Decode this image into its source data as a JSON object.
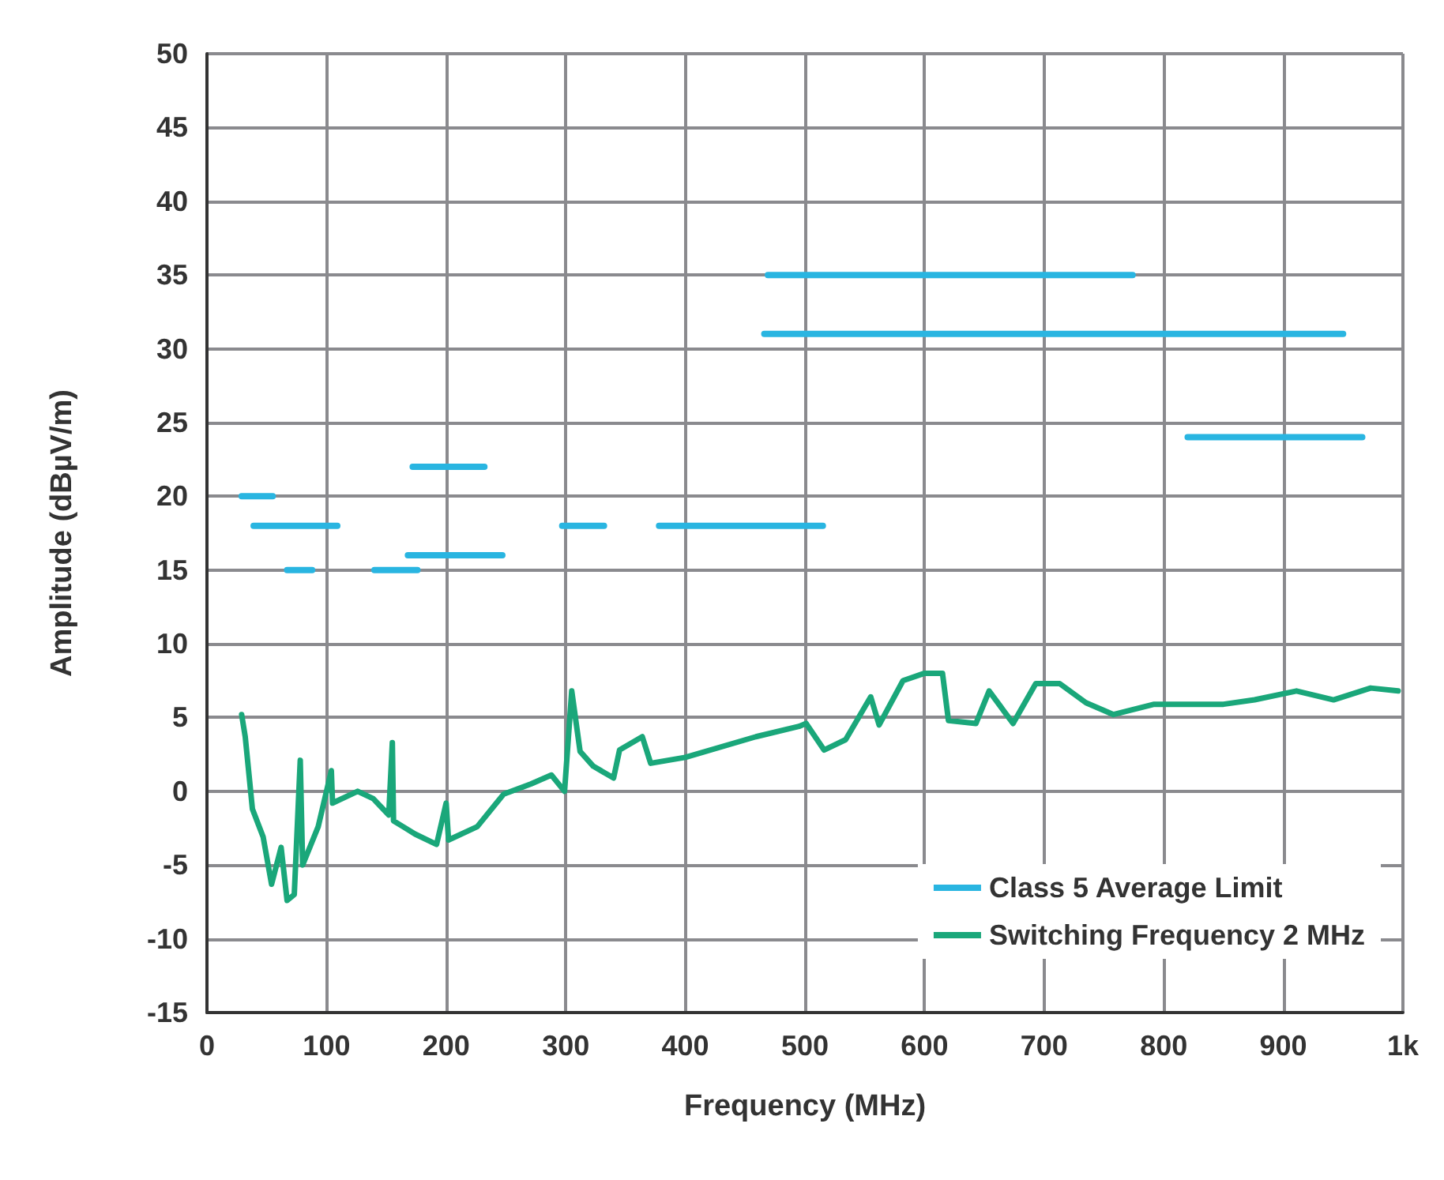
{
  "chart_data": {
    "type": "line",
    "xlabel": "Frequency (MHz)",
    "ylabel": "Amplitude (dBµV/m)",
    "xlim": [
      0,
      1000
    ],
    "xticks": [
      0,
      100,
      200,
      300,
      400,
      500,
      600,
      700,
      800,
      900,
      {
        "value": 1000,
        "label": "1k"
      }
    ],
    "ylim": [
      -15,
      50
    ],
    "yticks": [
      -15,
      -10,
      -5,
      0,
      5,
      10,
      15,
      20,
      25,
      30,
      35,
      40,
      45,
      50
    ],
    "grid": true,
    "legend": "bottom right",
    "marker": "none",
    "line_style": "solid",
    "series": [
      {
        "name": "Class 5 Average Limit",
        "color": "#29b5e1",
        "x": [
          29,
          55,
          null,
          39,
          109,
          null,
          67,
          88,
          null,
          140,
          176,
          null,
          172,
          232,
          null,
          168,
          247,
          null,
          297,
          332,
          null,
          378,
          515,
          null,
          469,
          774,
          null,
          466,
          950,
          null,
          820,
          966
        ],
        "values": [
          20,
          20,
          null,
          18,
          18,
          null,
          15,
          15,
          null,
          15,
          15,
          null,
          22,
          22,
          null,
          16,
          16,
          null,
          18,
          18,
          null,
          18,
          18,
          null,
          35,
          35,
          null,
          31,
          31,
          null,
          24,
          24
        ]
      },
      {
        "name": "Switching Frequency 2 MHz",
        "color": "#1aa77a",
        "x": [
          29,
          32,
          38,
          47,
          54,
          62,
          67,
          73,
          78,
          80,
          93,
          104,
          105,
          126,
          139,
          152,
          155,
          156,
          174,
          192,
          200,
          202,
          226,
          248,
          271,
          288,
          299,
          305,
          312,
          323,
          340,
          345,
          364,
          371,
          400,
          459,
          495,
          501,
          516,
          534,
          555,
          562,
          582,
          600,
          615,
          620,
          643,
          654,
          674,
          693,
          713,
          735,
          758,
          792,
          850,
          876,
          911,
          942,
          973,
          996
        ],
        "values": [
          5.2,
          3.7,
          -1.2,
          -3.1,
          -6.3,
          -3.8,
          -7.4,
          -7,
          2.1,
          -5,
          -2.4,
          1.4,
          -0.8,
          0,
          -0.5,
          -1.6,
          3.3,
          -2,
          -2.9,
          -3.6,
          -0.8,
          -3.3,
          -2.4,
          -0.2,
          0.5,
          1.1,
          0,
          6.8,
          2.7,
          1.7,
          0.9,
          2.8,
          3.7,
          1.9,
          2.3,
          3.7,
          4.4,
          4.6,
          2.8,
          3.5,
          6.4,
          4.5,
          7.5,
          8,
          8,
          4.8,
          4.6,
          6.8,
          4.6,
          7.3,
          7.3,
          6,
          5.2,
          5.9,
          5.9,
          6.2,
          6.8,
          6.2,
          7,
          6.8
        ]
      }
    ]
  }
}
